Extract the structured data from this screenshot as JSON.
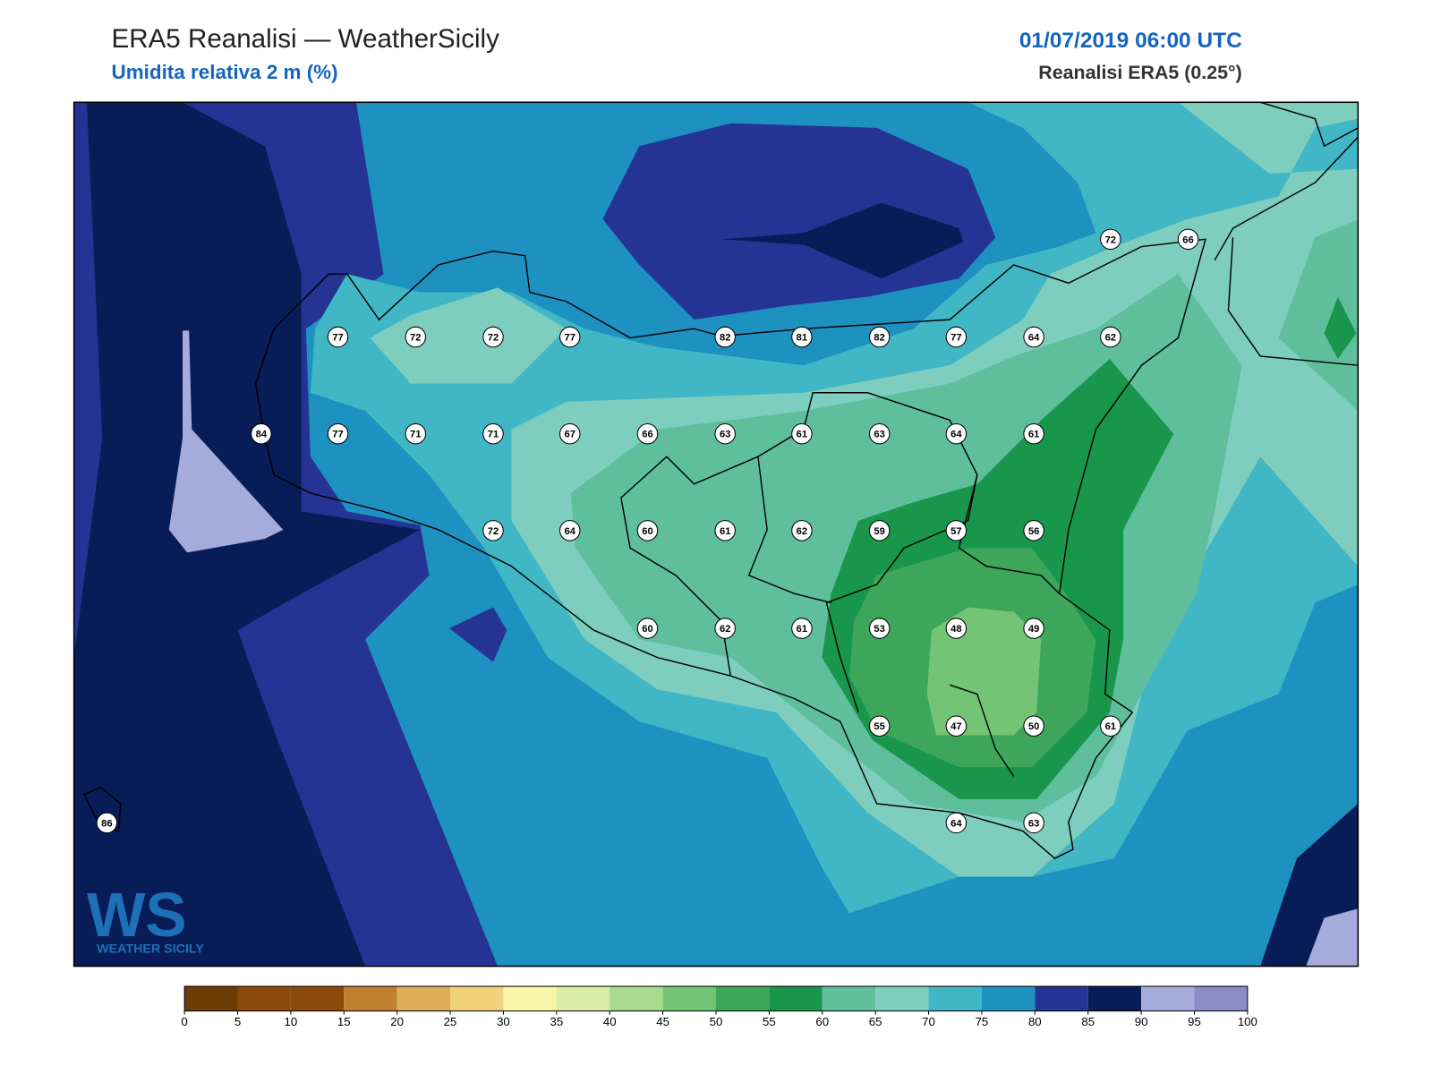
{
  "header": {
    "title": "ERA5 Reanalisi — WeatherSicily",
    "subtitle": "Umidita relativa 2 m (%)",
    "datetime": "01/07/2019 06:00 UTC",
    "source": "Reanalisi ERA5 (0.25°)"
  },
  "logo": {
    "mark": "WS",
    "text": "WEATHER SICILY"
  },
  "stations": [
    72,
    66,
    77,
    72,
    72,
    77,
    82,
    81,
    82,
    77,
    64,
    62,
    84,
    77,
    71,
    71,
    67,
    66,
    63,
    61,
    63,
    64,
    61,
    72,
    64,
    60,
    61,
    62,
    59,
    57,
    56,
    60,
    62,
    61,
    53,
    48,
    49,
    55,
    47,
    50,
    61,
    86,
    64,
    63
  ],
  "colorbar": {
    "lim": [
      0,
      100
    ],
    "ticks": [
      0,
      5,
      10,
      15,
      20,
      25,
      30,
      35,
      40,
      45,
      50,
      55,
      60,
      65,
      70,
      75,
      80,
      85,
      90,
      95,
      100
    ],
    "colors": [
      "#6f3c08",
      "#8a4a0c",
      "#8a4a0c",
      "#c0812e",
      "#dcac57",
      "#f0d27a",
      "#f8f6a8",
      "#d9eda6",
      "#a8db8f",
      "#74c476",
      "#3da65b",
      "#18964b",
      "#5fbf9d",
      "#7dcebf",
      "#41b6c4",
      "#1d91c0",
      "#253494",
      "#081d58",
      "#a5acdb",
      "#8c8cc8"
    ]
  }
}
